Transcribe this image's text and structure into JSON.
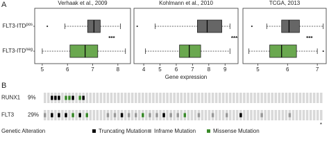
{
  "panel_labels": [
    "A",
    "B"
  ],
  "chart_data": [
    {
      "type": "box",
      "title": "Verhaak et al., 2009",
      "categories": [
        {
          "text": "FLT3-ITD",
          "sup": "pos"
        },
        {
          "text": "FLT3-ITD",
          "sup": "neg"
        }
      ],
      "xlim": [
        4.7,
        8.5
      ],
      "xticks": [
        5,
        6,
        7,
        8
      ],
      "annotation": "***",
      "boxes": [
        {
          "min": 5.9,
          "q1": 6.8,
          "median": 7.05,
          "q3": 7.3,
          "max": 8.1,
          "outliers": [
            5.2
          ],
          "color": "#666666"
        },
        {
          "min": 5.0,
          "q1": 6.1,
          "median": 6.7,
          "q3": 7.2,
          "max": 8.3,
          "outliers": [],
          "color": "#6aa84f"
        }
      ]
    },
    {
      "type": "box",
      "title": "Kohlmann et al., 2010",
      "xlabel": "Gene expression",
      "xlim": [
        3.4,
        9.8
      ],
      "xticks": [
        4,
        5,
        6,
        7,
        8,
        9
      ],
      "annotation": "***",
      "boxes": [
        {
          "min": 4.7,
          "q1": 7.3,
          "median": 7.9,
          "q3": 8.8,
          "max": 9.3,
          "outliers": [
            3.6
          ],
          "color": "#666666"
        },
        {
          "min": 4.1,
          "q1": 6.2,
          "median": 6.8,
          "q3": 7.5,
          "max": 9.3,
          "outliers": [],
          "color": "#6aa84f"
        }
      ]
    },
    {
      "type": "box",
      "title": "TCGA, 2013",
      "xlim": [
        4.5,
        7.3
      ],
      "xticks": [
        5,
        6,
        7
      ],
      "annotation": "***",
      "boxes": [
        {
          "min": 5.3,
          "q1": 5.8,
          "median": 6.05,
          "q3": 6.4,
          "max": 7.2,
          "outliers": [
            4.8
          ],
          "color": "#666666"
        },
        {
          "min": 4.7,
          "q1": 5.4,
          "median": 5.8,
          "q3": 6.3,
          "max": 7.0,
          "outliers": [
            7.2
          ],
          "color": "#6aa84f"
        }
      ]
    },
    {
      "type": "oncoprint",
      "background": "#d9d9d9",
      "annotation": "*",
      "rows": [
        {
          "gene": "RUNX1",
          "percent": "9%",
          "values": [
            null,
            null,
            0,
            0,
            0,
            null,
            2,
            2,
            0,
            null,
            2,
            0,
            null,
            null,
            null,
            null,
            null,
            null,
            null,
            null,
            null,
            null,
            null,
            null,
            null,
            null,
            null,
            null,
            null,
            null,
            null,
            null,
            null,
            null,
            null,
            null,
            null,
            null,
            null,
            null,
            null,
            null,
            null,
            null,
            null,
            null,
            null,
            null,
            null,
            null,
            null,
            null,
            null,
            null,
            null,
            null,
            null,
            null,
            null,
            null,
            null,
            null,
            null,
            null,
            null,
            null,
            null,
            null,
            null,
            null,
            null,
            null,
            null,
            null,
            null,
            null,
            null,
            null,
            null,
            null
          ]
        },
        {
          "gene": "FLT3",
          "percent": "29%",
          "values": [
            1,
            null,
            0,
            null,
            0,
            null,
            0,
            null,
            2,
            null,
            0,
            null,
            2,
            null,
            null,
            null,
            null,
            null,
            1,
            null,
            1,
            null,
            0,
            null,
            1,
            null,
            1,
            null,
            2,
            null,
            1,
            null,
            1,
            null,
            0,
            null,
            1,
            null,
            1,
            null,
            2,
            null,
            null,
            null,
            1,
            null,
            null,
            null,
            1,
            null,
            null,
            null,
            1,
            null,
            null,
            null,
            0,
            null,
            null,
            null,
            null,
            null,
            1,
            null,
            null,
            null,
            null,
            null,
            null,
            null,
            1,
            null,
            null,
            null,
            null,
            null,
            null,
            null,
            null,
            null
          ]
        }
      ],
      "legend": {
        "title": "Genetic Alteration",
        "items": [
          {
            "label": "Truncating Mutation",
            "color": "#000000"
          },
          {
            "label": "Inframe Mutation",
            "color": "#999999"
          },
          {
            "label": "Missense Mutation",
            "color": "#3a8a2a"
          }
        ]
      }
    }
  ]
}
